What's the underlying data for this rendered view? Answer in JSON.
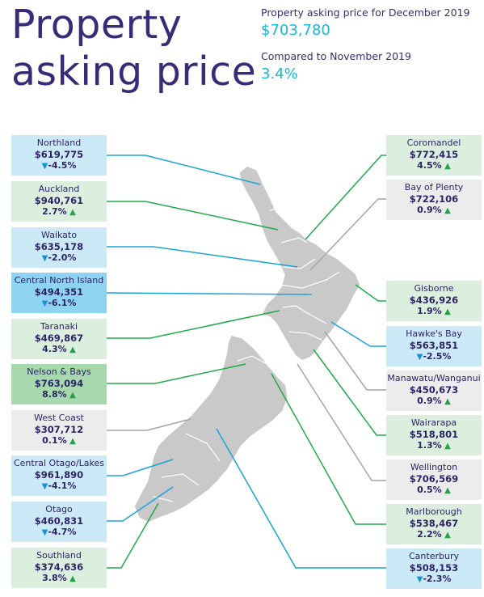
{
  "header": {
    "title_line1": "Property",
    "title_line2": "asking price",
    "asking_label": "Property asking price for December 2019",
    "asking_value": "$703,780",
    "compare_label": "Compared to November 2019",
    "compare_value": "3.4%"
  },
  "regions_left": [
    {
      "name": "Northland",
      "price": "$619,775",
      "change": "-4.5%",
      "dir": "down",
      "color": "blue"
    },
    {
      "name": "Auckland",
      "price": "$940,761",
      "change": "2.7%",
      "dir": "up",
      "color": "green"
    },
    {
      "name": "Waikato",
      "price": "$635,178",
      "change": "-2.0%",
      "dir": "down",
      "color": "blue"
    },
    {
      "name": "Central North Island",
      "price": "$494,351",
      "change": "-6.1%",
      "dir": "down",
      "color": "blue-strong"
    },
    {
      "name": "Taranaki",
      "price": "$469,867",
      "change": "4.3%",
      "dir": "up",
      "color": "green"
    },
    {
      "name": "Nelson & Bays",
      "price": "$763,094",
      "change": "8.8%",
      "dir": "up",
      "color": "green-strong"
    },
    {
      "name": "West Coast",
      "price": "$307,712",
      "change": "0.1%",
      "dir": "up",
      "color": "grey"
    },
    {
      "name": "Central Otago/Lakes",
      "price": "$961,890",
      "change": "-4.1%",
      "dir": "down",
      "color": "blue"
    },
    {
      "name": "Otago",
      "price": "$460,831",
      "change": "-4.7%",
      "dir": "down",
      "color": "blue"
    },
    {
      "name": "Southland",
      "price": "$374,636",
      "change": "3.8%",
      "dir": "up",
      "color": "green"
    }
  ],
  "regions_right": [
    {
      "name": "Coromandel",
      "price": "$772,415",
      "change": "4.5%",
      "dir": "up",
      "color": "green"
    },
    {
      "name": "Bay of Plenty",
      "price": "$722,106",
      "change": "0.9%",
      "dir": "up",
      "color": "grey"
    },
    {
      "name": "Gisborne",
      "price": "$436,926",
      "change": "1.9%",
      "dir": "up",
      "color": "green"
    },
    {
      "name": "Hawke's Bay",
      "price": "$563,851",
      "change": "-2.5%",
      "dir": "down",
      "color": "blue"
    },
    {
      "name": "Manawatu/Wanganui",
      "price": "$450,673",
      "change": "0.9%",
      "dir": "up",
      "color": "grey"
    },
    {
      "name": "Wairarapa",
      "price": "$518,801",
      "change": "1.3%",
      "dir": "up",
      "color": "green"
    },
    {
      "name": "Wellington",
      "price": "$706,569",
      "change": "0.5%",
      "dir": "up",
      "color": "grey"
    },
    {
      "name": "Marlborough",
      "price": "$538,467",
      "change": "2.2%",
      "dir": "up",
      "color": "green"
    },
    {
      "name": "Canterbury",
      "price": "$508,153",
      "change": "-2.3%",
      "dir": "down",
      "color": "blue"
    }
  ],
  "colors": {
    "blue_line": "#1aa3d9",
    "green_line": "#1faa4b",
    "grey_line": "#a5a5a5",
    "map": "#c9c9c9"
  }
}
